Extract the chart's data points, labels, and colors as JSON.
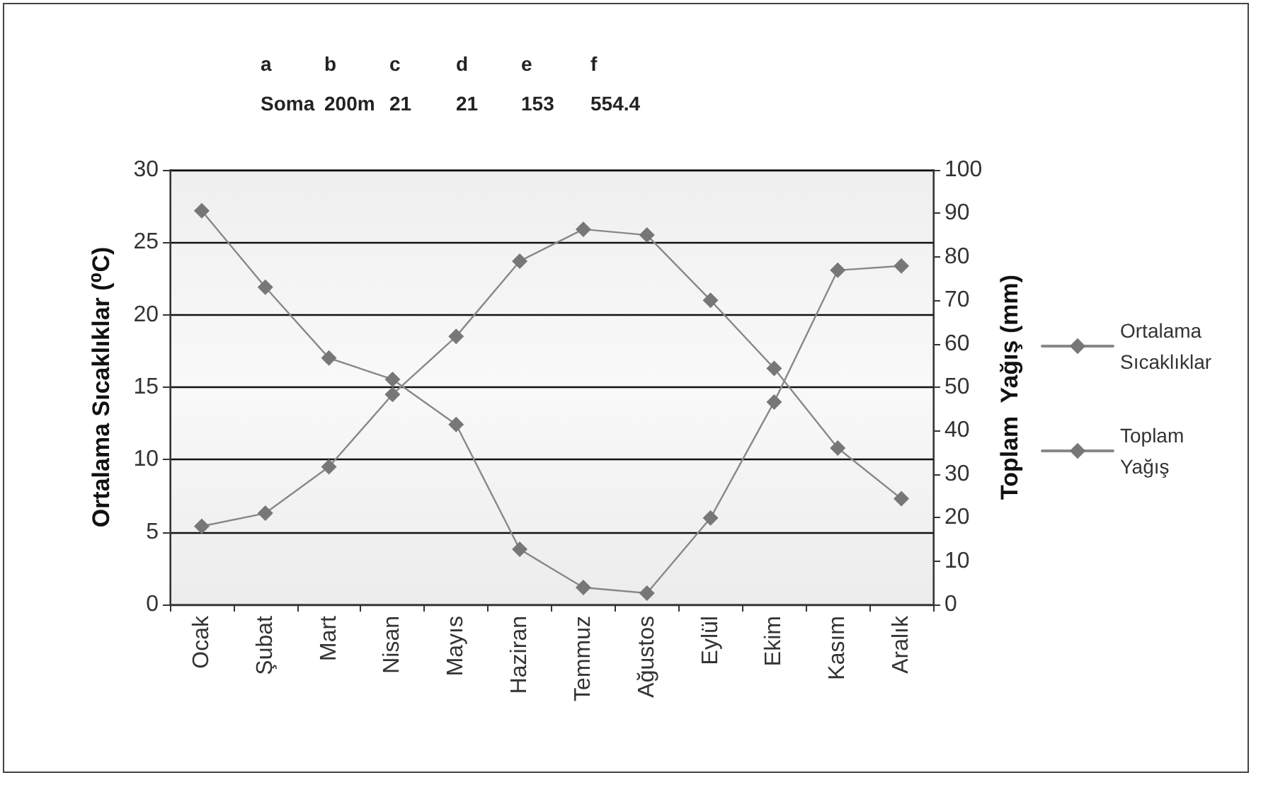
{
  "chart_data": {
    "type": "line",
    "annotations": [
      "a",
      "b",
      "c",
      "d",
      "e",
      "f",
      "Soma",
      "200m",
      "21",
      "21",
      "153",
      "554.4"
    ],
    "categories": [
      "Ocak",
      "Şubat",
      "Mart",
      "Nisan",
      "Mayıs",
      "Haziran",
      "Temmuz",
      "Ağustos",
      "Eylül",
      "Ekim",
      "Kasım",
      "Aralık"
    ],
    "ylabel": "Ortalama Sıcaklıklar (⁰C)",
    "y2label": "Toplam  Yağış (mm)",
    "ylim": [
      0,
      30
    ],
    "yticks": [
      0,
      5,
      10,
      15,
      20,
      25,
      30
    ],
    "y2lim": [
      0,
      100
    ],
    "y2ticks": [
      0,
      10,
      20,
      30,
      40,
      50,
      60,
      70,
      80,
      90,
      100
    ],
    "series": [
      {
        "name": "Ortalama Sıcaklıklar",
        "color": "#777777",
        "values": [
          5.4,
          6.3,
          9.5,
          14.5,
          18.5,
          23.7,
          25.9,
          25.5,
          21,
          16.3,
          10.8,
          7.3
        ]
      },
      {
        "name": "Toplam Yağış",
        "color": "#777777",
        "axis": "y2",
        "values": [
          90.6,
          73,
          56.7,
          51.8,
          41.4,
          12.7,
          3.9,
          2.6,
          19.9,
          46.6,
          76.9,
          77.9
        ]
      }
    ],
    "grid": "y",
    "legend": "right",
    "marker": "diamond",
    "line_style": "solid"
  }
}
